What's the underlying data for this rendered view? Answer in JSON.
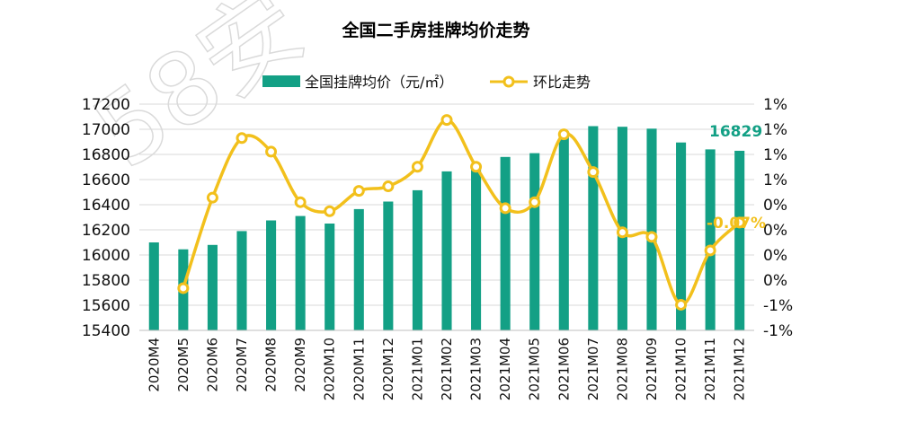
{
  "chart_data": {
    "type": "bar+line",
    "title": "全国二手房挂牌均价走势",
    "watermark": "58安",
    "categories": [
      "2020M4",
      "2020M5",
      "2020M6",
      "2020M7",
      "2020M8",
      "2020M9",
      "2020M10",
      "2020M11",
      "2020M12",
      "2021M01",
      "2021M02",
      "2021M03",
      "2021M04",
      "2021M05",
      "2021M06",
      "2021M07",
      "2021M08",
      "2021M09",
      "2021M10",
      "2021M11",
      "2021M12"
    ],
    "series": [
      {
        "name": "全国挂牌均价（元/㎡）",
        "type": "bar",
        "axis": "left",
        "color": "#13a085",
        "values": [
          16100,
          16045,
          16080,
          16190,
          16275,
          16310,
          16250,
          16365,
          16425,
          16515,
          16665,
          16720,
          16780,
          16810,
          16940,
          17025,
          17020,
          17005,
          16895,
          16840,
          16829
        ]
      },
      {
        "name": "环比走势",
        "type": "line",
        "axis": "right",
        "color": "#f2c01c",
        "values": [
          null,
          -0.94,
          0.26,
          1.05,
          0.87,
          0.2,
          0.08,
          0.35,
          0.41,
          0.67,
          1.29,
          0.67,
          0.12,
          0.2,
          1.1,
          0.6,
          -0.2,
          -0.26,
          -1.16,
          -0.44,
          -0.07
        ]
      }
    ],
    "y_left": {
      "min": 15400,
      "max": 17200,
      "step": 200,
      "ticks": [
        "15400",
        "15600",
        "15800",
        "16000",
        "16200",
        "16400",
        "16600",
        "16800",
        "17000",
        "17200"
      ]
    },
    "y_right": {
      "ticks": [
        "-1%",
        "-1%",
        "0%",
        "0%",
        "0%",
        "0%",
        "1%",
        "1%",
        "1%",
        "1%"
      ]
    },
    "annotations": {
      "last_bar": "16829",
      "last_line": "-0.07%"
    },
    "grid": true,
    "legend": "top-center"
  }
}
